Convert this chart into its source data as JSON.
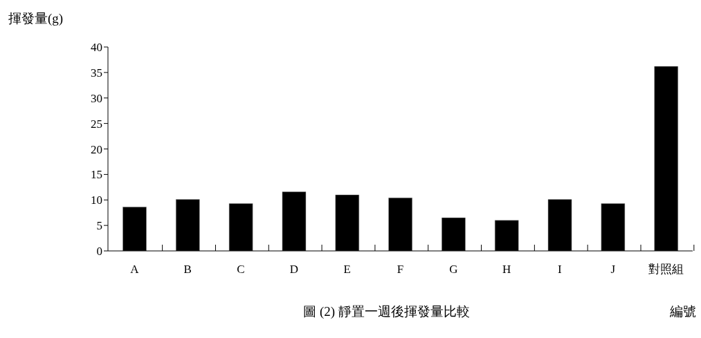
{
  "chart_data": {
    "type": "bar",
    "title": "圖 (2) 靜置一週後揮發量比較",
    "ylabel": "揮發量(g)",
    "xlabel": "編號",
    "categories": [
      "A",
      "B",
      "C",
      "D",
      "E",
      "F",
      "G",
      "H",
      "I",
      "J",
      "對照組"
    ],
    "values": [
      8.6,
      10.1,
      9.3,
      11.6,
      11.0,
      10.4,
      6.5,
      6.0,
      10.1,
      9.3,
      36.2
    ],
    "color": "#000000",
    "ylim": [
      0,
      40
    ],
    "yticks": [
      0,
      5,
      10,
      15,
      20,
      25,
      30,
      35,
      40
    ],
    "grid": false
  }
}
